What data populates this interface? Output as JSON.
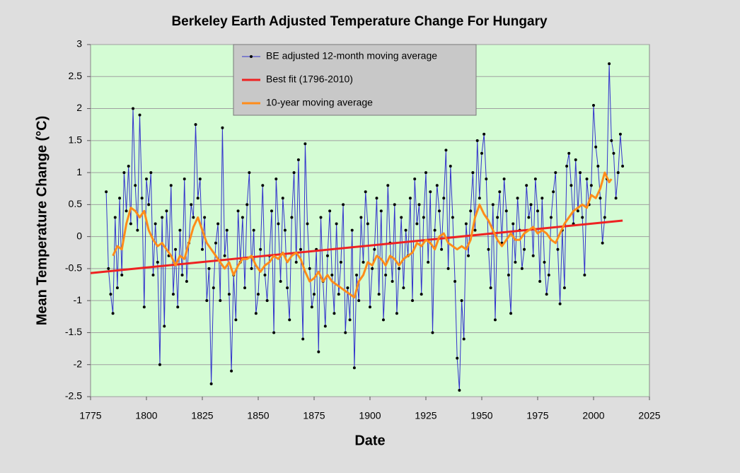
{
  "chart_data": {
    "type": "line",
    "title": "Berkeley Earth Adjusted Temperature Change For Hungary",
    "xlabel": "Date",
    "ylabel": "Mean  Temperature  Change  (°C)",
    "xlim": [
      1775,
      2025
    ],
    "xticks": [
      1775,
      1800,
      1825,
      1850,
      1875,
      1900,
      1925,
      1950,
      1975,
      2000,
      2025
    ],
    "ylim": [
      -2.5,
      3
    ],
    "yticks": [
      -2.5,
      -2,
      -1.5,
      -1,
      -0.5,
      0,
      0.5,
      1,
      1.5,
      2,
      2.5,
      3
    ],
    "grid": true,
    "legend": "top",
    "series": [
      {
        "name": "BE adjusted 12-month moving average",
        "color": "#3333cc",
        "marker": true,
        "x": [
          1782,
          1783,
          1784,
          1785,
          1786,
          1787,
          1788,
          1789,
          1790,
          1791,
          1792,
          1793,
          1794,
          1795,
          1796,
          1797,
          1798,
          1799,
          1800,
          1801,
          1802,
          1803,
          1804,
          1805,
          1806,
          1807,
          1808,
          1809,
          1810,
          1811,
          1812,
          1813,
          1814,
          1815,
          1816,
          1817,
          1818,
          1819,
          1820,
          1821,
          1822,
          1823,
          1824,
          1825,
          1826,
          1827,
          1828,
          1829,
          1830,
          1831,
          1832,
          1833,
          1834,
          1835,
          1836,
          1837,
          1838,
          1839,
          1840,
          1841,
          1842,
          1843,
          1844,
          1845,
          1846,
          1847,
          1848,
          1849,
          1850,
          1851,
          1852,
          1853,
          1854,
          1855,
          1856,
          1857,
          1858,
          1859,
          1860,
          1861,
          1862,
          1863,
          1864,
          1865,
          1866,
          1867,
          1868,
          1869,
          1870,
          1871,
          1872,
          1873,
          1874,
          1875,
          1876,
          1877,
          1878,
          1879,
          1880,
          1881,
          1882,
          1883,
          1884,
          1885,
          1886,
          1887,
          1888,
          1889,
          1890,
          1891,
          1892,
          1893,
          1894,
          1895,
          1896,
          1897,
          1898,
          1899,
          1900,
          1901,
          1902,
          1903,
          1904,
          1905,
          1906,
          1907,
          1908,
          1909,
          1910,
          1911,
          1912,
          1913,
          1914,
          1915,
          1916,
          1917,
          1918,
          1919,
          1920,
          1921,
          1922,
          1923,
          1924,
          1925,
          1926,
          1927,
          1928,
          1929,
          1930,
          1931,
          1932,
          1933,
          1934,
          1935,
          1936,
          1937,
          1938,
          1939,
          1940,
          1941,
          1942,
          1943,
          1944,
          1945,
          1946,
          1947,
          1948,
          1949,
          1950,
          1951,
          1952,
          1953,
          1954,
          1955,
          1956,
          1957,
          1958,
          1959,
          1960,
          1961,
          1962,
          1963,
          1964,
          1965,
          1966,
          1967,
          1968,
          1969,
          1970,
          1971,
          1972,
          1973,
          1974,
          1975,
          1976,
          1977,
          1978,
          1979,
          1980,
          1981,
          1982,
          1983,
          1984,
          1985,
          1986,
          1987,
          1988,
          1989,
          1990,
          1991,
          1992,
          1993,
          1994,
          1995,
          1996,
          1997,
          1998,
          1999,
          2000,
          2001,
          2002,
          2003,
          2004,
          2005,
          2006,
          2007,
          2008,
          2009,
          2010,
          2011,
          2012,
          2013
        ],
        "values": [
          0.7,
          -0.5,
          -0.9,
          -1.2,
          0.3,
          -0.8,
          0.6,
          -0.6,
          1.0,
          0.4,
          1.1,
          0.2,
          2.0,
          0.8,
          0.1,
          1.9,
          0.6,
          -1.1,
          0.9,
          0.5,
          1.0,
          -0.6,
          0.2,
          -0.4,
          -2.0,
          0.3,
          -1.4,
          0.4,
          -0.3,
          0.8,
          -0.9,
          -0.2,
          -1.1,
          0.1,
          -0.6,
          0.9,
          -0.7,
          -0.1,
          0.5,
          0.3,
          1.75,
          0.6,
          0.9,
          -0.2,
          0.3,
          -1.0,
          -0.5,
          -2.3,
          -0.8,
          -0.1,
          0.2,
          -1.0,
          1.7,
          -0.3,
          0.1,
          -0.9,
          -2.1,
          -0.6,
          -1.3,
          0.4,
          -0.4,
          0.3,
          -0.8,
          0.5,
          1.0,
          -0.5,
          0.1,
          -1.2,
          -0.9,
          -0.2,
          0.8,
          -0.6,
          -1.0,
          -0.3,
          0.4,
          -1.5,
          0.9,
          0.2,
          -0.7,
          0.6,
          0.1,
          -0.8,
          -1.3,
          0.3,
          1.0,
          -0.4,
          1.2,
          -0.2,
          -1.6,
          1.45,
          0.2,
          -0.5,
          -1.1,
          -0.9,
          -0.2,
          -1.8,
          0.3,
          -0.7,
          -1.4,
          -0.3,
          0.4,
          -0.6,
          -1.2,
          0.2,
          -0.9,
          -0.4,
          0.5,
          -1.5,
          -0.8,
          -1.3,
          0.1,
          -2.05,
          -0.6,
          -1.0,
          0.3,
          -0.4,
          0.7,
          0.2,
          -1.1,
          -0.5,
          -0.2,
          0.6,
          -0.9,
          0.4,
          -1.3,
          -0.6,
          0.8,
          -0.1,
          -0.7,
          0.5,
          -1.2,
          -0.5,
          0.3,
          -0.8,
          0.1,
          -0.3,
          0.6,
          -1.0,
          0.9,
          0.2,
          0.5,
          -0.9,
          0.3,
          1.0,
          -0.4,
          0.7,
          -1.5,
          0.1,
          0.8,
          0.4,
          -0.2,
          0.6,
          1.35,
          -0.5,
          1.1,
          0.3,
          -0.7,
          -1.9,
          -2.4,
          -1.0,
          -1.6,
          0.2,
          -0.3,
          0.4,
          1.0,
          0.1,
          1.5,
          0.6,
          1.3,
          1.6,
          0.9,
          -0.2,
          -0.8,
          0.5,
          -1.3,
          0.3,
          0.7,
          -0.1,
          0.9,
          0.4,
          -0.6,
          -1.2,
          0.2,
          -0.4,
          0.6,
          0.1,
          -0.5,
          -0.2,
          0.8,
          0.3,
          0.5,
          -0.3,
          0.9,
          0.4,
          -0.7,
          0.6,
          -0.4,
          -0.9,
          -0.6,
          0.3,
          0.7,
          1.0,
          -0.2,
          -1.05,
          0.1,
          -0.8,
          1.1,
          1.3,
          0.8,
          0.2,
          1.2,
          0.4,
          1.0,
          0.3,
          -0.6,
          0.9,
          0.5,
          0.8,
          2.05,
          1.4,
          1.1,
          0.6,
          -0.1,
          0.3,
          0.9,
          2.7,
          1.5,
          1.3,
          0.6,
          1.0,
          1.6,
          1.1
        ]
      },
      {
        "name": "Best fit (1796-2010)",
        "color": "#ee2222",
        "marker": false,
        "x": [
          1775,
          2013
        ],
        "values": [
          -0.57,
          0.25
        ]
      },
      {
        "name": "10-year moving average",
        "color": "#ff8c1a",
        "marker": false,
        "x": [
          1785,
          1787,
          1789,
          1791,
          1793,
          1795,
          1797,
          1799,
          1801,
          1803,
          1805,
          1807,
          1809,
          1811,
          1813,
          1815,
          1817,
          1819,
          1821,
          1823,
          1825,
          1827,
          1829,
          1831,
          1833,
          1835,
          1837,
          1839,
          1841,
          1843,
          1845,
          1847,
          1849,
          1851,
          1853,
          1855,
          1857,
          1859,
          1861,
          1863,
          1865,
          1867,
          1869,
          1871,
          1873,
          1875,
          1877,
          1879,
          1881,
          1883,
          1885,
          1887,
          1889,
          1891,
          1893,
          1895,
          1897,
          1899,
          1901,
          1903,
          1905,
          1907,
          1909,
          1911,
          1913,
          1915,
          1917,
          1919,
          1921,
          1923,
          1925,
          1927,
          1929,
          1931,
          1933,
          1935,
          1937,
          1939,
          1941,
          1943,
          1945,
          1947,
          1949,
          1951,
          1953,
          1955,
          1957,
          1959,
          1961,
          1963,
          1965,
          1967,
          1969,
          1971,
          1973,
          1975,
          1977,
          1979,
          1981,
          1983,
          1985,
          1987,
          1989,
          1991,
          1993,
          1995,
          1997,
          1999,
          2001,
          2003,
          2005,
          2007,
          2008
        ],
        "values": [
          -0.3,
          -0.15,
          -0.2,
          0.2,
          0.45,
          0.4,
          0.3,
          0.4,
          0.1,
          -0.05,
          -0.15,
          -0.1,
          -0.2,
          -0.3,
          -0.45,
          -0.3,
          -0.35,
          -0.1,
          0.15,
          0.3,
          0.1,
          -0.1,
          -0.2,
          -0.3,
          -0.4,
          -0.5,
          -0.4,
          -0.6,
          -0.45,
          -0.35,
          -0.35,
          -0.3,
          -0.45,
          -0.55,
          -0.45,
          -0.4,
          -0.3,
          -0.35,
          -0.25,
          -0.4,
          -0.3,
          -0.25,
          -0.35,
          -0.55,
          -0.7,
          -0.65,
          -0.55,
          -0.7,
          -0.6,
          -0.7,
          -0.75,
          -0.8,
          -0.85,
          -0.9,
          -0.95,
          -0.7,
          -0.6,
          -0.4,
          -0.45,
          -0.3,
          -0.35,
          -0.45,
          -0.3,
          -0.35,
          -0.45,
          -0.35,
          -0.3,
          -0.25,
          -0.1,
          -0.15,
          -0.05,
          -0.1,
          -0.2,
          0.0,
          0.05,
          -0.1,
          -0.15,
          -0.2,
          -0.15,
          -0.2,
          -0.05,
          0.3,
          0.5,
          0.35,
          0.25,
          0.1,
          -0.05,
          -0.15,
          -0.05,
          0.05,
          -0.05,
          -0.05,
          0.05,
          0.1,
          0.15,
          0.05,
          0.1,
          0.05,
          -0.05,
          -0.1,
          0.05,
          0.2,
          0.3,
          0.4,
          0.45,
          0.5,
          0.45,
          0.65,
          0.6,
          0.75,
          1.0,
          0.85,
          0.9
        ]
      }
    ]
  }
}
